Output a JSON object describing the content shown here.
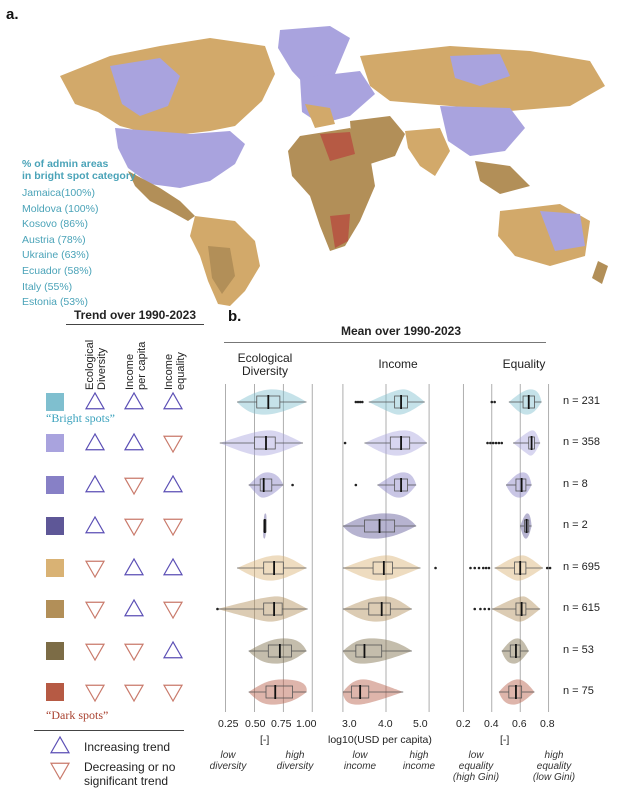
{
  "panel_a": {
    "label": "a.",
    "bright_spot_heading_line1": "% of admin areas",
    "bright_spot_heading_line2": "in bright spot category",
    "bright_spot_list": [
      "Jamaica(100%)",
      "Moldova (100%)",
      "Kosovo (86%)",
      "Austria (78%)",
      "Ukraine (63%)",
      "Ecuador (58%)",
      "Italy (55%)",
      "Estonia (53%)"
    ]
  },
  "legend": {
    "header": "Trend over 1990-2023",
    "columns": [
      {
        "line1": "Ecological",
        "line2": "Diversity"
      },
      {
        "line1": "Income",
        "line2": "per capita"
      },
      {
        "line1": "Income",
        "line2": "equality"
      }
    ],
    "bright_note": "“Bright spots”",
    "dark_note": "“Dark spots”",
    "increasing_label": "Increasing trend",
    "decreasing_label_line1": "Decreasing or no",
    "decreasing_label_line2": "significant trend",
    "colors": {
      "increasing": "#5b4fb5",
      "decreasing": "#c97a6b"
    }
  },
  "panel_b": {
    "label": "b.",
    "header": "Mean over 1990-2023",
    "panels": [
      {
        "title_line1": "Ecological",
        "title_line2": "Diversity",
        "unit": "[-]",
        "ticks": [
          "0.25",
          "0.50",
          "0.75",
          "1.00"
        ],
        "low_annot_line1": "low",
        "low_annot_line2": "diversity",
        "high_annot_line1": "high",
        "high_annot_line2": "diversity"
      },
      {
        "title_line1": "Income",
        "title_line2": "",
        "unit": "log10(USD per capita)",
        "ticks": [
          "3.0",
          "4.0",
          "5.0"
        ],
        "low_annot_line1": "low",
        "low_annot_line2": "income",
        "high_annot_line1": "high",
        "high_annot_line2": "income"
      },
      {
        "title_line1": "Equality",
        "title_line2": "",
        "unit": "[-]",
        "ticks": [
          "0.2",
          "0.4",
          "0.6",
          "0.8"
        ],
        "low_annot_line1": "low",
        "low_annot_line2": "equality",
        "low_annot_line3": "(high Gini)",
        "high_annot_line1": "high",
        "high_annot_line2": "equality",
        "high_annot_line3": "(low Gini)"
      }
    ]
  },
  "chart_data": {
    "type": "violin",
    "categories": [
      {
        "color": "#7fbfcf",
        "trends": [
          "up",
          "up",
          "up"
        ],
        "n_label": "n = 231"
      },
      {
        "color": "#a9a3de",
        "trends": [
          "up",
          "up",
          "down"
        ],
        "n_label": "n = 358"
      },
      {
        "color": "#8780c6",
        "trends": [
          "up",
          "down",
          "up"
        ],
        "n_label": "n = 8"
      },
      {
        "color": "#5e5797",
        "trends": [
          "up",
          "down",
          "down"
        ],
        "n_label": "n = 2"
      },
      {
        "color": "#d9b274",
        "trends": [
          "down",
          "up",
          "up"
        ],
        "n_label": "n = 695"
      },
      {
        "color": "#b28f58",
        "trends": [
          "down",
          "up",
          "down"
        ],
        "n_label": "n = 615"
      },
      {
        "color": "#7c6c46",
        "trends": [
          "down",
          "down",
          "up"
        ],
        "n_label": "n = 53"
      },
      {
        "color": "#b65a44",
        "trends": [
          "down",
          "down",
          "down"
        ],
        "n_label": "n = 75"
      }
    ],
    "series": [
      {
        "name": "Ecological Diversity",
        "xlim": [
          0.15,
          1.05
        ],
        "gridlines": [
          0.25,
          0.5,
          0.75,
          1.0
        ],
        "boxes": [
          {
            "min": 0.35,
            "q1": 0.52,
            "median": 0.62,
            "q3": 0.72,
            "max": 0.95
          },
          {
            "min": 0.2,
            "q1": 0.5,
            "median": 0.6,
            "q3": 0.68,
            "max": 0.92
          },
          {
            "min": 0.45,
            "q1": 0.55,
            "median": 0.58,
            "q3": 0.65,
            "max": 0.75
          },
          {
            "min": 0.58,
            "q1": 0.58,
            "median": 0.59,
            "q3": 0.6,
            "max": 0.6
          },
          {
            "min": 0.35,
            "q1": 0.58,
            "median": 0.67,
            "q3": 0.75,
            "max": 0.95
          },
          {
            "min": 0.18,
            "q1": 0.58,
            "median": 0.67,
            "q3": 0.74,
            "max": 0.96
          },
          {
            "min": 0.45,
            "q1": 0.62,
            "median": 0.72,
            "q3": 0.82,
            "max": 0.95
          },
          {
            "min": 0.45,
            "q1": 0.6,
            "median": 0.68,
            "q3": 0.83,
            "max": 0.95
          }
        ],
        "outliers": [
          [],
          [],
          [
            0.83
          ],
          [],
          [],
          [
            0.18
          ],
          [],
          []
        ]
      },
      {
        "name": "Income",
        "xlim": [
          2.7,
          5.3
        ],
        "gridlines": [
          3.0,
          4.0,
          5.0
        ],
        "boxes": [
          {
            "min": 3.6,
            "q1": 4.2,
            "median": 4.35,
            "q3": 4.5,
            "max": 4.9
          },
          {
            "min": 3.5,
            "q1": 4.1,
            "median": 4.35,
            "q3": 4.55,
            "max": 4.95
          },
          {
            "min": 3.8,
            "q1": 4.2,
            "median": 4.35,
            "q3": 4.5,
            "max": 4.7
          },
          {
            "min": 3.0,
            "q1": 3.5,
            "median": 3.85,
            "q3": 4.2,
            "max": 4.7
          },
          {
            "min": 3.0,
            "q1": 3.7,
            "median": 3.95,
            "q3": 4.15,
            "max": 4.8
          },
          {
            "min": 3.0,
            "q1": 3.6,
            "median": 3.9,
            "q3": 4.1,
            "max": 4.6
          },
          {
            "min": 3.0,
            "q1": 3.3,
            "median": 3.5,
            "q3": 3.9,
            "max": 4.6
          },
          {
            "min": 3.0,
            "q1": 3.2,
            "median": 3.4,
            "q3": 3.6,
            "max": 4.4
          }
        ],
        "outliers": [
          [
            3.3,
            3.35,
            3.4,
            3.45
          ],
          [
            3.05
          ],
          [
            3.3
          ],
          [],
          [
            5.15
          ],
          [],
          [],
          []
        ]
      },
      {
        "name": "Equality",
        "xlim": [
          0.12,
          0.88
        ],
        "gridlines": [
          0.2,
          0.4,
          0.6,
          0.8
        ],
        "boxes": [
          {
            "min": 0.52,
            "q1": 0.62,
            "median": 0.66,
            "q3": 0.7,
            "max": 0.75
          },
          {
            "min": 0.55,
            "q1": 0.66,
            "median": 0.68,
            "q3": 0.7,
            "max": 0.74
          },
          {
            "min": 0.5,
            "q1": 0.57,
            "median": 0.61,
            "q3": 0.64,
            "max": 0.68
          },
          {
            "min": 0.6,
            "q1": 0.63,
            "median": 0.645,
            "q3": 0.66,
            "max": 0.68
          },
          {
            "min": 0.42,
            "q1": 0.56,
            "median": 0.6,
            "q3": 0.64,
            "max": 0.76
          },
          {
            "min": 0.4,
            "q1": 0.57,
            "median": 0.61,
            "q3": 0.64,
            "max": 0.74
          },
          {
            "min": 0.47,
            "q1": 0.53,
            "median": 0.57,
            "q3": 0.6,
            "max": 0.66
          },
          {
            "min": 0.45,
            "q1": 0.52,
            "median": 0.57,
            "q3": 0.61,
            "max": 0.7
          }
        ],
        "outliers": [
          [
            0.4,
            0.42
          ],
          [
            0.37,
            0.39,
            0.41,
            0.43,
            0.45,
            0.47
          ],
          [],
          [],
          [
            0.25,
            0.28,
            0.31,
            0.34,
            0.36,
            0.38,
            0.79,
            0.81
          ],
          [
            0.28,
            0.32,
            0.35,
            0.38
          ],
          [],
          []
        ]
      }
    ]
  }
}
